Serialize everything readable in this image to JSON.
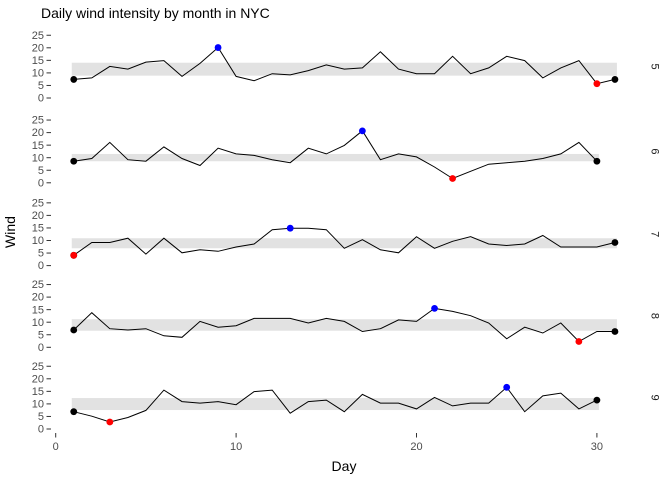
{
  "title": "Daily wind intensity by month in NYC",
  "x_axis": {
    "label": "Day",
    "ticks": [
      "0",
      "10",
      "20",
      "30"
    ]
  },
  "y_axis": {
    "label": "Wind",
    "ticks": [
      "25",
      "20",
      "15",
      "10",
      "5",
      "0"
    ]
  },
  "facet_labels": [
    "5",
    "6",
    "7",
    "8",
    "9"
  ],
  "colors": {
    "line": "#000000",
    "endpoint_marker": "#000000",
    "max_marker": "#0000ff",
    "min_marker": "#ff0000",
    "band": "#e2e2e2",
    "axis_text": "#4d4d4d",
    "strip_text": "#1a1a1a",
    "tick_mark": "#333333",
    "title_text": "#000000"
  },
  "chart_data": {
    "type": "line",
    "title": "Daily wind intensity by month in NYC",
    "xlabel": "Day",
    "ylabel": "Wind",
    "x_range": [
      1,
      31
    ],
    "ylim": [
      0,
      25
    ],
    "x_ticks": [
      0,
      10,
      20,
      30
    ],
    "y_ticks": [
      25,
      20,
      15,
      10,
      5,
      0
    ],
    "grid": false,
    "legend": "none",
    "facet_axis": "right",
    "marker_legend": {
      "black_points": "first and last day of month",
      "blue_point": "monthly maximum",
      "red_point": "monthly minimum",
      "gray_band": "interquartile range (Q1-Q3) of month"
    },
    "facets": [
      {
        "label": "5",
        "month": 5,
        "days": 31,
        "band_q1": 8.9,
        "band_q3": 14.05,
        "values": [
          7.4,
          8.0,
          12.6,
          11.5,
          14.3,
          14.9,
          8.6,
          13.8,
          20.1,
          8.6,
          6.9,
          9.7,
          9.2,
          10.9,
          13.2,
          11.5,
          12.0,
          18.4,
          11.5,
          9.7,
          9.7,
          16.6,
          9.7,
          12.0,
          16.6,
          14.9,
          8.0,
          12.0,
          14.9,
          5.7,
          7.4
        ]
      },
      {
        "label": "6",
        "month": 6,
        "days": 30,
        "band_q1": 8.6,
        "band_q3": 11.5,
        "values": [
          8.6,
          9.7,
          16.1,
          9.2,
          8.6,
          14.3,
          9.7,
          6.9,
          13.8,
          11.5,
          10.9,
          9.2,
          8.0,
          13.8,
          11.5,
          14.9,
          20.7,
          9.2,
          11.5,
          10.3,
          6.3,
          1.7,
          4.6,
          7.4,
          8.0,
          8.6,
          9.7,
          11.5,
          16.1,
          8.6
        ]
      },
      {
        "label": "7",
        "month": 7,
        "days": 31,
        "band_q1": 6.9,
        "band_q3": 10.9,
        "values": [
          4.1,
          9.2,
          9.2,
          10.9,
          4.6,
          10.9,
          5.1,
          6.3,
          5.7,
          7.4,
          8.6,
          14.3,
          14.9,
          14.9,
          14.3,
          6.9,
          10.3,
          6.3,
          5.1,
          11.5,
          6.9,
          9.7,
          11.5,
          8.6,
          8.0,
          8.6,
          12.0,
          7.4,
          7.4,
          7.4,
          9.2
        ]
      },
      {
        "label": "8",
        "month": 8,
        "days": 31,
        "band_q1": 6.6,
        "band_q3": 11.2,
        "values": [
          6.9,
          13.8,
          7.4,
          6.9,
          7.4,
          4.6,
          4.0,
          10.3,
          8.0,
          8.6,
          11.5,
          11.5,
          11.5,
          9.7,
          11.5,
          10.3,
          6.3,
          7.4,
          10.9,
          10.3,
          15.5,
          14.3,
          12.6,
          9.7,
          3.4,
          8.0,
          5.7,
          9.7,
          2.3,
          6.3,
          6.3
        ]
      },
      {
        "label": "9",
        "month": 9,
        "days": 30,
        "band_q1": 7.55,
        "band_q3": 12.33,
        "values": [
          6.9,
          5.1,
          2.8,
          4.6,
          7.4,
          15.5,
          10.9,
          10.3,
          10.9,
          9.7,
          14.9,
          15.5,
          6.3,
          10.9,
          11.5,
          6.9,
          13.8,
          10.3,
          10.3,
          8.0,
          12.6,
          9.2,
          10.3,
          10.3,
          16.6,
          6.9,
          13.2,
          14.3,
          8.0,
          11.5
        ]
      }
    ]
  }
}
